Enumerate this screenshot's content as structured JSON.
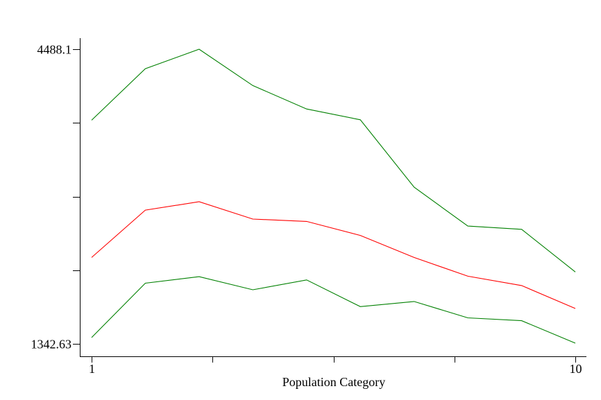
{
  "chart_data": {
    "type": "line",
    "title": "",
    "xlabel": "Population Category",
    "ylabel": "",
    "x": [
      1,
      2,
      3,
      4,
      5,
      6,
      7,
      8,
      9,
      10
    ],
    "xlim": [
      1,
      10
    ],
    "ylim": [
      1342.63,
      4488.1
    ],
    "x_tick_labels": [
      {
        "value": 1,
        "label": "1"
      },
      {
        "value": 10,
        "label": "10"
      }
    ],
    "x_unlabeled_ticks": [
      3.25,
      5.5,
      7.75
    ],
    "y_tick_labels": [
      {
        "value": 4488.1,
        "label": "4488.1"
      },
      {
        "value": 1342.63,
        "label": "1342.63"
      }
    ],
    "y_unlabeled_ticks": [
      3701.5,
      2915.0,
      2128.6
    ],
    "grid": false,
    "legend": "none",
    "series": [
      {
        "color": "#008000",
        "values": [
          3730,
          4280,
          4488,
          4100,
          3850,
          3735,
          3015,
          2600,
          2565,
          2110
        ]
      },
      {
        "color": "#ff0000",
        "values": [
          2265,
          2770,
          2860,
          2675,
          2650,
          2500,
          2265,
          2065,
          1965,
          1720
        ]
      },
      {
        "color": "#008000",
        "values": [
          1410,
          1990,
          2060,
          1920,
          2025,
          1740,
          1795,
          1620,
          1590,
          1350
        ]
      }
    ]
  }
}
